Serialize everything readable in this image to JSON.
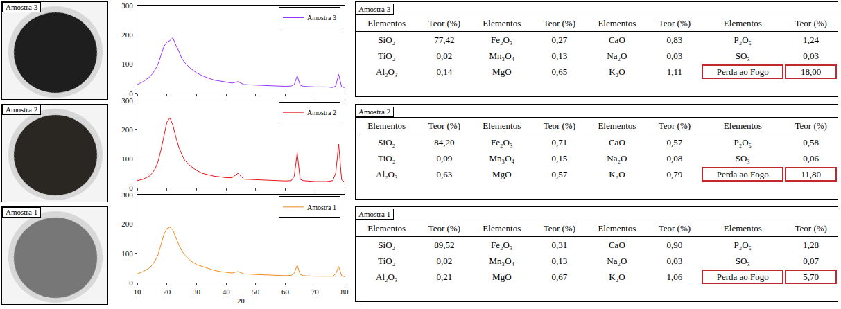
{
  "photos": [
    "Amostra 3",
    "Amostra 2",
    "Amostra 1"
  ],
  "chart_data": [
    {
      "type": "line",
      "x": [
        10,
        12,
        14,
        15,
        16,
        17,
        18,
        19,
        20,
        21,
        22,
        23,
        24,
        25,
        26,
        27,
        28,
        30,
        32,
        34,
        36,
        38,
        40,
        42,
        44,
        46,
        50,
        55,
        60,
        62,
        63,
        64,
        65,
        66,
        70,
        74,
        76,
        77,
        78,
        79,
        80
      ],
      "series": [
        {
          "name": "Amostra 3",
          "color": "#9933ff",
          "values": [
            30,
            40,
            55,
            65,
            80,
            100,
            130,
            160,
            175,
            180,
            190,
            165,
            145,
            120,
            105,
            95,
            85,
            70,
            60,
            52,
            45,
            42,
            38,
            35,
            40,
            30,
            28,
            26,
            24,
            25,
            30,
            60,
            28,
            24,
            22,
            22,
            20,
            25,
            65,
            22,
            20
          ]
        }
      ],
      "xlim": [
        10,
        80
      ],
      "xticks": [
        10,
        20,
        30,
        40,
        50,
        60,
        70,
        80
      ],
      "ylim": [
        0,
        300
      ],
      "yticks": [
        0,
        100,
        200,
        300
      ],
      "legend": "upper right",
      "tick_labels": "y"
    },
    {
      "type": "line",
      "x": [
        10,
        12,
        14,
        15,
        16,
        17,
        18,
        19,
        20,
        21,
        22,
        23,
        24,
        25,
        26,
        27,
        28,
        30,
        32,
        34,
        36,
        38,
        40,
        42,
        44,
        46,
        50,
        55,
        60,
        62,
        63,
        64,
        65,
        66,
        70,
        74,
        76,
        77,
        78,
        79,
        80
      ],
      "series": [
        {
          "name": "Amostra 2",
          "color": "#e8141a",
          "values": [
            25,
            30,
            40,
            50,
            65,
            90,
            130,
            180,
            225,
            240,
            215,
            175,
            140,
            115,
            95,
            85,
            75,
            60,
            50,
            45,
            40,
            38,
            35,
            35,
            50,
            30,
            28,
            25,
            24,
            25,
            40,
            120,
            30,
            25,
            22,
            22,
            25,
            50,
            150,
            28,
            20
          ]
        }
      ],
      "xlim": [
        10,
        80
      ],
      "xticks": [
        10,
        20,
        30,
        40,
        50,
        60,
        70,
        80
      ],
      "ylim": [
        0,
        300
      ],
      "yticks": [
        0,
        100,
        200,
        300
      ],
      "legend": "upper right",
      "tick_labels": "y"
    },
    {
      "type": "line",
      "x": [
        10,
        12,
        14,
        15,
        16,
        17,
        18,
        19,
        20,
        21,
        22,
        23,
        24,
        25,
        26,
        27,
        28,
        30,
        32,
        34,
        36,
        38,
        40,
        42,
        44,
        46,
        50,
        55,
        60,
        62,
        63,
        64,
        65,
        66,
        70,
        74,
        76,
        77,
        78,
        79,
        80
      ],
      "series": [
        {
          "name": "Amostra 1",
          "color": "#f08a1e",
          "values": [
            30,
            38,
            50,
            60,
            75,
            95,
            130,
            165,
            185,
            190,
            180,
            155,
            130,
            110,
            95,
            85,
            75,
            62,
            55,
            48,
            42,
            38,
            35,
            33,
            38,
            30,
            28,
            26,
            24,
            25,
            32,
            60,
            28,
            24,
            22,
            22,
            22,
            30,
            55,
            24,
            20
          ]
        }
      ],
      "xlim": [
        10,
        80
      ],
      "xticks": [
        10,
        20,
        30,
        40,
        50,
        60,
        70,
        80
      ],
      "ylim": [
        0,
        300
      ],
      "yticks": [
        0,
        100,
        200,
        300
      ],
      "xlabel": "2θ",
      "legend": "upper right"
    }
  ],
  "tables": [
    {
      "title": "Amostra 3",
      "header": [
        "Elementos",
        "Teor (%)",
        "Elementos",
        "Teor (%)",
        "Elementos",
        "Teor (%)",
        "Elementos",
        "Teor (%)"
      ],
      "rows": [
        [
          "SiO₂",
          "77,42",
          "Fe₂O₃",
          "0,27",
          "CaO",
          "0,83",
          "P₂O₅",
          "1,24"
        ],
        [
          "TiO₂",
          "0,02",
          "Mn₃O₄",
          "0,13",
          "Na₂O",
          "0,03",
          "SO₃",
          "0,03"
        ],
        [
          "Al₂O₃",
          "0,14",
          "MgO",
          "0,65",
          "K₂O",
          "1,11",
          "Perda ao Fogo",
          "18,00"
        ]
      ]
    },
    {
      "title": "Amostra 2",
      "header": [
        "Elementos",
        "Teor (%)",
        "Elementos",
        "Teor (%)",
        "Elementos",
        "Teor (%)",
        "Elementos",
        "Teor (%)"
      ],
      "rows": [
        [
          "SiO₂",
          "84,20",
          "Fe₂O₃",
          "0,71",
          "CaO",
          "0,57",
          "P₂O₅",
          "0,58"
        ],
        [
          "TiO₂",
          "0,09",
          "Mn₃O₄",
          "0,15",
          "Na₂O",
          "0,08",
          "SO₃",
          "0,06"
        ],
        [
          "Al₂O₃",
          "0,63",
          "MgO",
          "0,57",
          "K₂O",
          "0,79",
          "Perda ao Fogo",
          "11,80"
        ]
      ]
    },
    {
      "title": "Amostra 1",
      "header": [
        "Elementos",
        "Teor (%)",
        "Elementos",
        "Teor (%)",
        "Elementos",
        "Teor (%)",
        "Elementos",
        "Teor (%)"
      ],
      "rows": [
        [
          "SiO₂",
          "89,52",
          "Fe₂O₃",
          "0,31",
          "CaO",
          "0,90",
          "P₂O₅",
          "1,28"
        ],
        [
          "TiO₂",
          "0,02",
          "Mn₃O₄",
          "0,13",
          "Na₂O",
          "0,03",
          "SO₃",
          "0,07"
        ],
        [
          "Al₂O₃",
          "0,21",
          "MgO",
          "0,67",
          "K₂O",
          "1,06",
          "Perda ao Fogo",
          "5,70"
        ]
      ]
    }
  ]
}
